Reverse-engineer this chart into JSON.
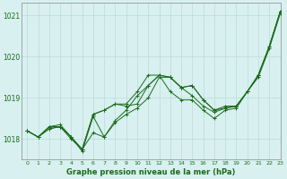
{
  "title": "Graphe pression niveau de la mer (hPa)",
  "background_color": "#d8f0f0",
  "grid_color": "#c0dede",
  "line_color": "#1a6b1a",
  "xlim": [
    -0.5,
    23
  ],
  "ylim": [
    1017.5,
    1021.3
  ],
  "yticks": [
    1018,
    1019,
    1020,
    1021
  ],
  "xticks": [
    0,
    1,
    2,
    3,
    4,
    5,
    6,
    7,
    8,
    9,
    10,
    11,
    12,
    13,
    14,
    15,
    16,
    17,
    18,
    19,
    20,
    21,
    22,
    23
  ],
  "series": [
    [
      1018.2,
      1018.05,
      1018.25,
      1018.3,
      1018.05,
      1017.75,
      1018.15,
      1018.05,
      1018.4,
      1018.6,
      1018.75,
      1019.0,
      1019.5,
      1019.5,
      1019.25,
      1019.05,
      1018.8,
      1018.65,
      1018.75,
      1018.8,
      1019.15,
      1019.55,
      1020.25,
      1021.1
    ],
    [
      1018.2,
      1018.05,
      1018.3,
      1018.3,
      1018.0,
      1017.75,
      1018.6,
      1018.7,
      1018.85,
      1018.8,
      1018.85,
      1019.3,
      1019.55,
      1019.5,
      1019.25,
      1019.3,
      1018.95,
      1018.7,
      1018.75,
      1018.8,
      1019.15,
      1019.55,
      1020.25,
      1021.1
    ],
    [
      1018.2,
      1018.05,
      1018.3,
      1018.35,
      1018.05,
      1017.75,
      1018.6,
      1018.7,
      1018.85,
      1018.85,
      1019.15,
      1019.55,
      1019.55,
      1019.5,
      1019.25,
      1019.3,
      1018.95,
      1018.7,
      1018.8,
      1018.8,
      1019.15,
      1019.55,
      1020.25,
      1021.1
    ],
    [
      1018.2,
      1018.05,
      1018.25,
      1018.3,
      1018.05,
      1017.7,
      1018.55,
      1018.05,
      1018.45,
      1018.7,
      1019.05,
      1019.3,
      1019.55,
      1019.15,
      1018.95,
      1018.95,
      1018.7,
      1018.5,
      1018.7,
      1018.75,
      1019.15,
      1019.5,
      1020.2,
      1021.05
    ]
  ]
}
